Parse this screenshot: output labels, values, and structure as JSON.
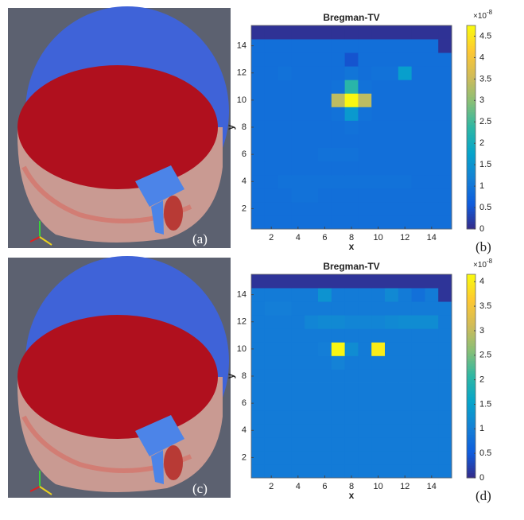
{
  "images": [
    {
      "label": "(a)"
    },
    {
      "label": "(c)"
    }
  ],
  "chart_data": [
    {
      "type": "heatmap",
      "title": "Bregman-TV",
      "xlabel": "x",
      "ylabel": "y",
      "panel_label": "(b)",
      "x": [
        1,
        2,
        3,
        4,
        5,
        6,
        7,
        8,
        9,
        10,
        11,
        12,
        13,
        14,
        15
      ],
      "y": [
        1,
        2,
        3,
        4,
        5,
        6,
        7,
        8,
        9,
        10,
        11,
        12,
        13,
        14,
        15
      ],
      "z": [
        [
          0.9,
          0.9,
          0.9,
          0.9,
          0.9,
          0.9,
          0.9,
          0.9,
          0.9,
          0.9,
          0.9,
          0.9,
          0.9,
          0.9,
          0.9
        ],
        [
          0.9,
          0.9,
          0.9,
          0.9,
          0.9,
          0.9,
          0.9,
          0.9,
          0.9,
          0.9,
          0.9,
          0.9,
          0.9,
          0.9,
          0.9
        ],
        [
          0.9,
          0.9,
          0.9,
          0.95,
          0.95,
          0.9,
          0.9,
          0.9,
          0.9,
          0.9,
          0.9,
          0.9,
          0.9,
          0.9,
          0.9
        ],
        [
          0.9,
          0.9,
          0.95,
          0.95,
          0.95,
          0.95,
          0.95,
          0.95,
          0.95,
          0.95,
          0.95,
          0.95,
          0.9,
          0.9,
          0.9
        ],
        [
          0.9,
          0.9,
          0.9,
          0.9,
          0.9,
          0.9,
          0.9,
          0.9,
          0.9,
          0.9,
          0.9,
          0.9,
          0.9,
          0.9,
          0.9
        ],
        [
          0.9,
          0.9,
          0.9,
          0.9,
          0.9,
          0.95,
          0.95,
          0.95,
          0.9,
          0.9,
          0.9,
          0.9,
          0.9,
          0.9,
          0.9
        ],
        [
          0.9,
          0.9,
          0.9,
          0.9,
          0.9,
          0.9,
          0.9,
          0.9,
          0.9,
          0.9,
          0.9,
          0.9,
          0.9,
          0.9,
          0.9
        ],
        [
          0.9,
          0.9,
          0.9,
          0.9,
          0.9,
          0.9,
          0.9,
          0.95,
          0.9,
          0.9,
          0.9,
          0.9,
          0.9,
          0.9,
          0.9
        ],
        [
          0.9,
          0.9,
          0.9,
          0.9,
          0.9,
          0.9,
          0.95,
          1.6,
          0.95,
          0.9,
          0.9,
          0.9,
          0.9,
          0.9,
          0.9
        ],
        [
          0.9,
          0.9,
          0.9,
          0.9,
          0.9,
          0.9,
          3.4,
          4.7,
          3.4,
          0.9,
          0.9,
          0.9,
          0.9,
          0.9,
          0.9
        ],
        [
          0.9,
          0.9,
          0.9,
          0.9,
          0.9,
          0.9,
          0.95,
          2.3,
          0.95,
          0.9,
          0.9,
          0.9,
          0.9,
          0.9,
          0.9
        ],
        [
          0.9,
          0.9,
          0.95,
          0.9,
          0.9,
          0.9,
          0.9,
          1.0,
          0.9,
          0.95,
          0.95,
          1.7,
          0.9,
          0.9,
          0.9
        ],
        [
          0.9,
          0.9,
          0.9,
          0.9,
          0.9,
          0.9,
          0.9,
          0.5,
          0.9,
          0.9,
          0.9,
          0.9,
          0.9,
          0.9,
          0.9
        ],
        [
          0.9,
          0.9,
          0.9,
          0.9,
          0.9,
          0.9,
          0.9,
          0.9,
          0.9,
          0.9,
          0.9,
          0.9,
          0.9,
          0.9,
          0.1
        ],
        [
          0.1,
          0.1,
          0.1,
          0.1,
          0.1,
          0.1,
          0.1,
          0.1,
          0.1,
          0.1,
          0.1,
          0.1,
          0.1,
          0.1,
          0.1
        ]
      ],
      "xlim": [
        0.5,
        15.5
      ],
      "ylim": [
        0.5,
        15.5
      ],
      "xticks": [
        2,
        4,
        6,
        8,
        10,
        12,
        14
      ],
      "yticks": [
        2,
        4,
        6,
        8,
        10,
        12,
        14
      ],
      "clim": [
        0,
        4.75
      ],
      "cticks": [
        0,
        0.5,
        1,
        1.5,
        2,
        2.5,
        3,
        3.5,
        4,
        4.5
      ],
      "colorbar_multiplier": "×10",
      "colorbar_power": "-8",
      "colormap": [
        "#352a87",
        "#0f5cdd",
        "#1481d6",
        "#06a4ca",
        "#2eb7a4",
        "#87bf77",
        "#d1bb59",
        "#fec832",
        "#f9fb0e"
      ]
    },
    {
      "type": "heatmap",
      "title": "Bregman-TV",
      "xlabel": "x",
      "ylabel": "y",
      "panel_label": "(d)",
      "x": [
        1,
        2,
        3,
        4,
        5,
        6,
        7,
        8,
        9,
        10,
        11,
        12,
        13,
        14,
        15
      ],
      "y": [
        1,
        2,
        3,
        4,
        5,
        6,
        7,
        8,
        9,
        10,
        11,
        12,
        13,
        14,
        15
      ],
      "z": [
        [
          0.95,
          0.95,
          0.95,
          0.95,
          0.95,
          0.95,
          0.95,
          0.95,
          0.95,
          0.95,
          0.95,
          0.95,
          0.95,
          0.95,
          0.95
        ],
        [
          0.95,
          0.95,
          0.95,
          0.95,
          0.95,
          0.95,
          0.95,
          0.95,
          0.95,
          0.95,
          0.95,
          0.95,
          0.95,
          0.95,
          0.95
        ],
        [
          0.95,
          0.95,
          0.95,
          0.95,
          0.95,
          0.95,
          0.95,
          0.95,
          0.95,
          0.95,
          0.95,
          0.95,
          0.95,
          0.95,
          0.95
        ],
        [
          0.95,
          0.95,
          0.95,
          0.95,
          0.95,
          0.95,
          0.95,
          0.95,
          0.95,
          0.95,
          0.95,
          0.95,
          0.95,
          0.95,
          0.95
        ],
        [
          0.95,
          0.95,
          0.95,
          0.95,
          0.95,
          0.95,
          0.95,
          0.95,
          0.95,
          0.95,
          0.95,
          0.95,
          0.95,
          0.95,
          0.95
        ],
        [
          0.95,
          0.95,
          0.95,
          0.95,
          0.95,
          0.95,
          0.95,
          0.95,
          0.95,
          0.95,
          0.95,
          0.95,
          0.95,
          0.95,
          0.95
        ],
        [
          0.95,
          0.95,
          0.95,
          0.95,
          0.95,
          0.95,
          0.95,
          0.95,
          0.95,
          0.95,
          0.95,
          0.95,
          0.95,
          0.95,
          0.95
        ],
        [
          0.95,
          0.95,
          0.95,
          0.95,
          0.95,
          0.95,
          0.95,
          0.95,
          0.95,
          0.95,
          0.95,
          0.95,
          0.95,
          0.95,
          0.95
        ],
        [
          0.95,
          0.95,
          0.95,
          0.95,
          0.95,
          0.95,
          1.05,
          0.95,
          0.95,
          0.95,
          0.95,
          0.95,
          0.95,
          0.95,
          0.95
        ],
        [
          0.95,
          0.95,
          0.95,
          0.95,
          0.95,
          1.0,
          4.1,
          1.2,
          0.95,
          4.0,
          0.95,
          0.95,
          0.95,
          0.95,
          0.95
        ],
        [
          0.95,
          0.95,
          0.95,
          0.95,
          0.95,
          0.95,
          0.95,
          0.95,
          0.95,
          0.95,
          0.95,
          0.95,
          0.95,
          0.95,
          0.95
        ],
        [
          0.95,
          0.95,
          0.95,
          0.95,
          1.1,
          1.15,
          1.15,
          1.1,
          1.1,
          1.1,
          1.15,
          1.2,
          1.2,
          1.2,
          0.95
        ],
        [
          0.95,
          1.0,
          1.0,
          0.95,
          0.95,
          0.95,
          0.95,
          0.95,
          0.95,
          0.95,
          0.95,
          0.95,
          0.95,
          0.95,
          0.95
        ],
        [
          0.95,
          0.95,
          0.95,
          0.95,
          0.95,
          1.3,
          0.95,
          0.95,
          0.95,
          0.95,
          1.15,
          0.95,
          0.8,
          0.95,
          0.1
        ],
        [
          0.1,
          0.1,
          0.1,
          0.1,
          0.1,
          0.1,
          0.1,
          0.1,
          0.1,
          0.1,
          0.1,
          0.1,
          0.1,
          0.1,
          0.1
        ]
      ],
      "xlim": [
        0.5,
        15.5
      ],
      "ylim": [
        0.5,
        15.5
      ],
      "xticks": [
        2,
        4,
        6,
        8,
        10,
        12,
        14
      ],
      "yticks": [
        2,
        4,
        6,
        8,
        10,
        12,
        14
      ],
      "clim": [
        0,
        4.15
      ],
      "cticks": [
        0,
        0.5,
        1,
        1.5,
        2,
        2.5,
        3,
        3.5,
        4
      ],
      "colorbar_multiplier": "×10",
      "colorbar_power": "-8",
      "colormap": [
        "#352a87",
        "#0f5cdd",
        "#1481d6",
        "#06a4ca",
        "#2eb7a4",
        "#87bf77",
        "#d1bb59",
        "#fec832",
        "#f9fb0e"
      ]
    }
  ]
}
